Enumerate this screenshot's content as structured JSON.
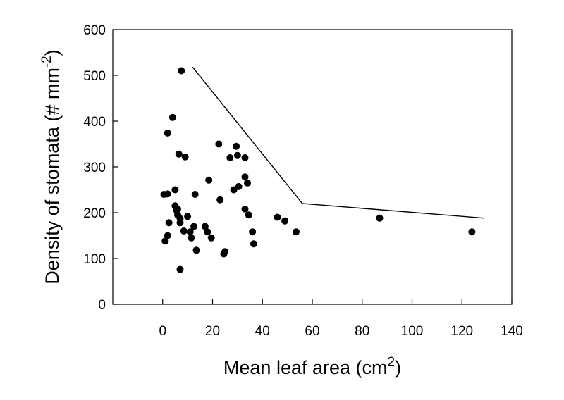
{
  "chart_data": {
    "type": "scatter",
    "xlabel": {
      "text": "Mean leaf area (cm",
      "sup": "2",
      "close": ")"
    },
    "ylabel": {
      "text": "Density of stomata (# mm",
      "sup": "-2",
      "close": ")"
    },
    "xlim": [
      -20,
      140
    ],
    "ylim": [
      0,
      600
    ],
    "x_ticks": [
      0,
      20,
      40,
      60,
      80,
      100,
      120,
      140
    ],
    "y_ticks": [
      0,
      100,
      200,
      300,
      400,
      500,
      600
    ],
    "grid": false,
    "legend": "none",
    "colors": {
      "points": "#000000",
      "line": "#000000",
      "axes": "#000000"
    },
    "series": [
      {
        "type": "scatter",
        "points": [
          [
            7.5,
            510
          ],
          [
            4,
            408
          ],
          [
            2,
            374
          ],
          [
            6.5,
            328
          ],
          [
            9,
            322
          ],
          [
            0.5,
            240
          ],
          [
            2,
            241
          ],
          [
            5,
            250
          ],
          [
            13,
            240
          ],
          [
            18.5,
            271
          ],
          [
            22.5,
            350
          ],
          [
            29.5,
            345
          ],
          [
            30,
            325
          ],
          [
            33,
            320
          ],
          [
            27,
            320
          ],
          [
            33,
            278
          ],
          [
            30.5,
            257
          ],
          [
            28.5,
            250
          ],
          [
            34,
            265
          ],
          [
            23,
            228
          ],
          [
            5,
            215
          ],
          [
            5.5,
            206
          ],
          [
            6,
            208
          ],
          [
            6,
            195
          ],
          [
            7,
            187
          ],
          [
            7,
            178
          ],
          [
            2.5,
            178
          ],
          [
            2,
            150
          ],
          [
            1,
            138
          ],
          [
            8.5,
            160
          ],
          [
            10,
            192
          ],
          [
            11,
            158
          ],
          [
            12.5,
            170
          ],
          [
            11.5,
            145
          ],
          [
            13.5,
            118
          ],
          [
            17,
            170
          ],
          [
            18,
            158
          ],
          [
            19.5,
            145
          ],
          [
            25,
            115
          ],
          [
            24.5,
            110
          ],
          [
            33,
            208
          ],
          [
            34.5,
            195
          ],
          [
            36,
            158
          ],
          [
            36.5,
            132
          ],
          [
            7,
            76
          ],
          [
            46,
            190
          ],
          [
            49,
            182
          ],
          [
            53.5,
            158
          ],
          [
            87,
            188
          ],
          [
            124,
            158
          ]
        ]
      },
      {
        "type": "line",
        "points": [
          [
            12,
            518
          ],
          [
            56,
            220
          ],
          [
            129,
            188
          ]
        ]
      }
    ]
  }
}
